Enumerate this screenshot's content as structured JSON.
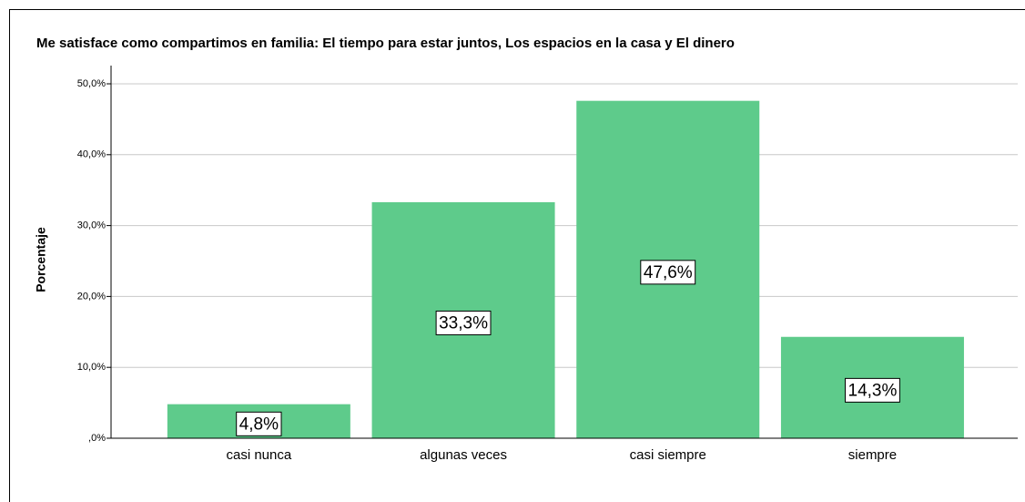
{
  "chart_data": {
    "type": "bar",
    "title": "Me satisface como compartimos en familia: El tiempo para estar juntos, Los espacios en la casa y El dinero",
    "y_label": "Porcentaje",
    "categories": [
      "casi nunca",
      "algunas veces",
      "casi siempre",
      "siempre"
    ],
    "values": [
      4.8,
      33.3,
      47.6,
      14.3
    ],
    "value_labels": [
      "4,8%",
      "33,3%",
      "47,6%",
      "14,3%"
    ],
    "color": "#5ecb8b",
    "ylim": [
      0,
      50
    ],
    "yticks": [
      {
        "value": 0,
        "label": ",0%"
      },
      {
        "value": 10,
        "label": "10,0%"
      },
      {
        "value": 20,
        "label": "20,0%"
      },
      {
        "value": 30,
        "label": "30,0%"
      },
      {
        "value": 40,
        "label": "40,0%"
      },
      {
        "value": 50,
        "label": "50,0%"
      }
    ],
    "grid": true
  }
}
